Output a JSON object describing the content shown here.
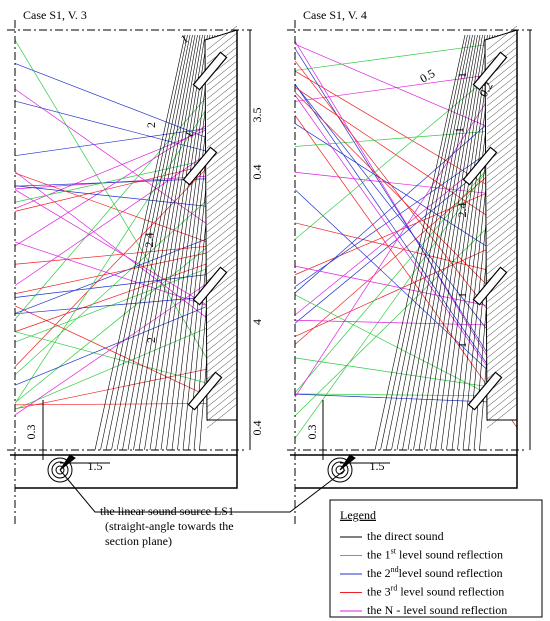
{
  "panels": [
    {
      "title": "Case S1, V. 3",
      "dimensions": [
        "1",
        "2",
        "1",
        "3.5",
        "0.4",
        "2.4",
        "4",
        "2",
        "0.4",
        "0.3",
        "1.5"
      ]
    },
    {
      "title": "Case S1, V. 4",
      "dimensions": [
        "0.5",
        "1",
        "0.2",
        "1",
        "2.4",
        "1",
        "1",
        "0.3",
        "1.5"
      ]
    }
  ],
  "callout": [
    "the linear sound source LS1",
    "(straight-angle towards the",
    "section plane)"
  ],
  "legend": {
    "title": "Legend",
    "items": [
      {
        "prefix": "the direct sound",
        "color": "#000000"
      },
      {
        "prefix": "the 1",
        "sup": "st",
        "suffix": " level sound reflection",
        "color": "#33cc44"
      },
      {
        "prefix": "the 2",
        "sup": "nd",
        "suffix": "level sound reflection",
        "color": "#2233cc"
      },
      {
        "prefix": "the 3",
        "sup": "rd",
        "suffix": " level sound reflection",
        "color": "#ee2222"
      },
      {
        "prefix": "the N - level sound reflection",
        "color": "#dd22dd"
      }
    ]
  }
}
